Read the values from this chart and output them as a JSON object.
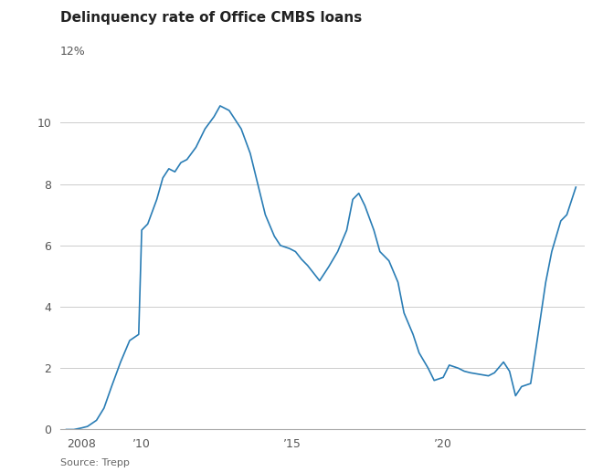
{
  "title": "Delinquency rate of Office CMBS loans",
  "source": "Source: Trepp",
  "line_color": "#2a7db5",
  "background_color": "#ffffff",
  "grid_color": "#cccccc",
  "ylim": [
    0,
    12
  ],
  "yticks": [
    0,
    2,
    4,
    6,
    8,
    10
  ],
  "ytick_top_label": "12%",
  "xlim": [
    2007.3,
    2024.7
  ],
  "xtick_positions": [
    2008.0,
    2010.0,
    2015.0,
    2020.0
  ],
  "xtick_labels": [
    "2008",
    "’10",
    "’15",
    "’20"
  ],
  "data": [
    [
      2007.5,
      0.0
    ],
    [
      2007.75,
      0.0
    ],
    [
      2008.0,
      0.05
    ],
    [
      2008.2,
      0.1
    ],
    [
      2008.5,
      0.3
    ],
    [
      2008.75,
      0.7
    ],
    [
      2009.0,
      1.4
    ],
    [
      2009.3,
      2.2
    ],
    [
      2009.6,
      2.9
    ],
    [
      2009.9,
      3.1
    ],
    [
      2010.0,
      6.5
    ],
    [
      2010.2,
      6.7
    ],
    [
      2010.5,
      7.5
    ],
    [
      2010.7,
      8.2
    ],
    [
      2010.9,
      8.5
    ],
    [
      2011.1,
      8.4
    ],
    [
      2011.3,
      8.7
    ],
    [
      2011.5,
      8.8
    ],
    [
      2011.8,
      9.2
    ],
    [
      2012.1,
      9.8
    ],
    [
      2012.4,
      10.2
    ],
    [
      2012.6,
      10.55
    ],
    [
      2012.9,
      10.4
    ],
    [
      2013.1,
      10.1
    ],
    [
      2013.3,
      9.8
    ],
    [
      2013.6,
      9.0
    ],
    [
      2013.9,
      7.8
    ],
    [
      2014.1,
      7.0
    ],
    [
      2014.4,
      6.3
    ],
    [
      2014.6,
      6.0
    ],
    [
      2014.9,
      5.9
    ],
    [
      2015.1,
      5.8
    ],
    [
      2015.3,
      5.55
    ],
    [
      2015.5,
      5.35
    ],
    [
      2015.7,
      5.1
    ],
    [
      2015.9,
      4.85
    ],
    [
      2016.2,
      5.3
    ],
    [
      2016.5,
      5.8
    ],
    [
      2016.8,
      6.5
    ],
    [
      2017.0,
      7.5
    ],
    [
      2017.2,
      7.7
    ],
    [
      2017.4,
      7.3
    ],
    [
      2017.7,
      6.5
    ],
    [
      2017.9,
      5.8
    ],
    [
      2018.2,
      5.5
    ],
    [
      2018.5,
      4.8
    ],
    [
      2018.7,
      3.8
    ],
    [
      2019.0,
      3.1
    ],
    [
      2019.2,
      2.5
    ],
    [
      2019.5,
      2.0
    ],
    [
      2019.7,
      1.6
    ],
    [
      2020.0,
      1.7
    ],
    [
      2020.2,
      2.1
    ],
    [
      2020.5,
      2.0
    ],
    [
      2020.7,
      1.9
    ],
    [
      2020.9,
      1.85
    ],
    [
      2021.2,
      1.8
    ],
    [
      2021.5,
      1.75
    ],
    [
      2021.7,
      1.85
    ],
    [
      2022.0,
      2.2
    ],
    [
      2022.2,
      1.9
    ],
    [
      2022.4,
      1.1
    ],
    [
      2022.6,
      1.4
    ],
    [
      2022.9,
      1.5
    ],
    [
      2023.1,
      2.8
    ],
    [
      2023.4,
      4.8
    ],
    [
      2023.6,
      5.8
    ],
    [
      2023.9,
      6.8
    ],
    [
      2024.1,
      7.0
    ],
    [
      2024.4,
      7.9
    ]
  ]
}
